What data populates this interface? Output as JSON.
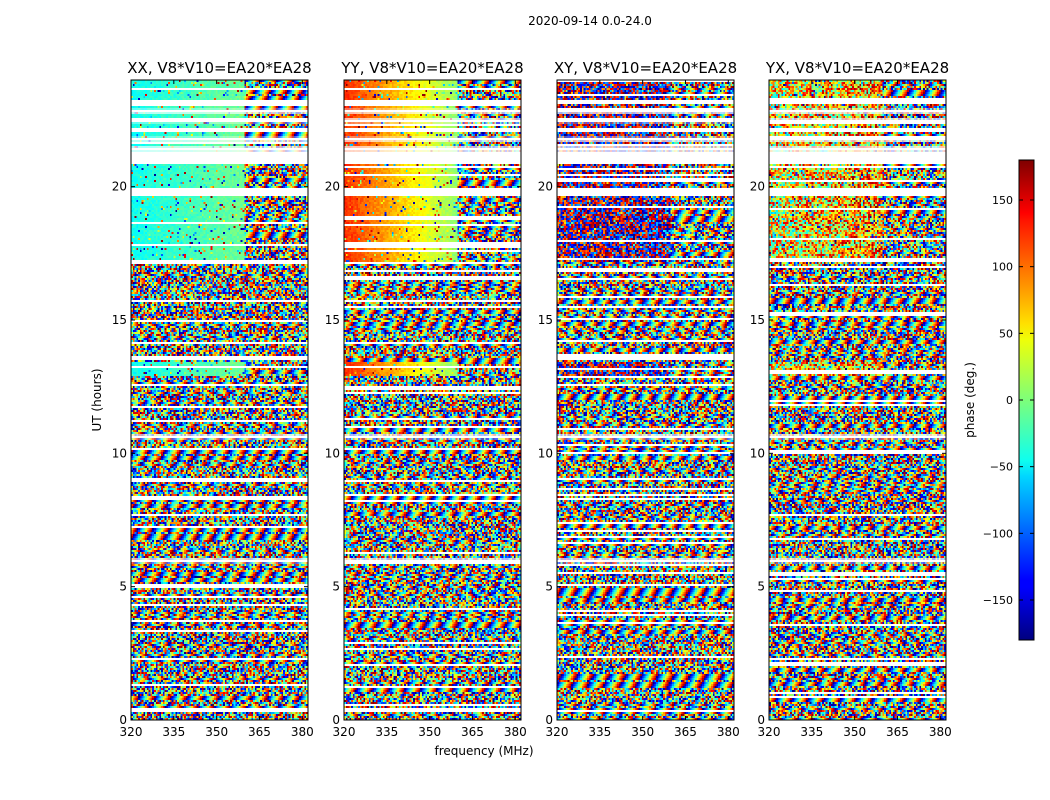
{
  "chart_data": {
    "type": "heatmap",
    "suptitle": "2020-09-14 0.0-24.0",
    "xlabel": "frequency (MHz)",
    "ylabel": "UT (hours)",
    "xlim": [
      320,
      382
    ],
    "ylim": [
      0,
      24
    ],
    "x_ticks": [
      "320",
      "335",
      "350",
      "365",
      "380"
    ],
    "y_ticks": [
      "0",
      "5",
      "10",
      "15",
      "20"
    ],
    "panels": [
      {
        "title": "XX, V8*V10=EA20*EA28",
        "coherent_phase_deg": -40
      },
      {
        "title": "YY, V8*V10=EA20*EA28",
        "coherent_phase_deg": 120
      },
      {
        "title": "XY, V8*V10=EA20*EA28",
        "coherent_phase_deg": 170
      },
      {
        "title": "YX, V8*V10=EA20*EA28",
        "coherent_phase_deg": 40
      }
    ],
    "colorbar": {
      "label": "phase (deg.)",
      "range": [
        -180,
        180
      ],
      "ticks": [
        "150",
        "100",
        "50",
        "0",
        "−50",
        "−100",
        "−150"
      ],
      "colormap": "jet"
    },
    "flagged_ut_ranges": [
      [
        20.85,
        21.35
      ],
      [
        19.65,
        19.95
      ],
      [
        10.55,
        10.7
      ],
      [
        5.9,
        6.05
      ]
    ]
  }
}
